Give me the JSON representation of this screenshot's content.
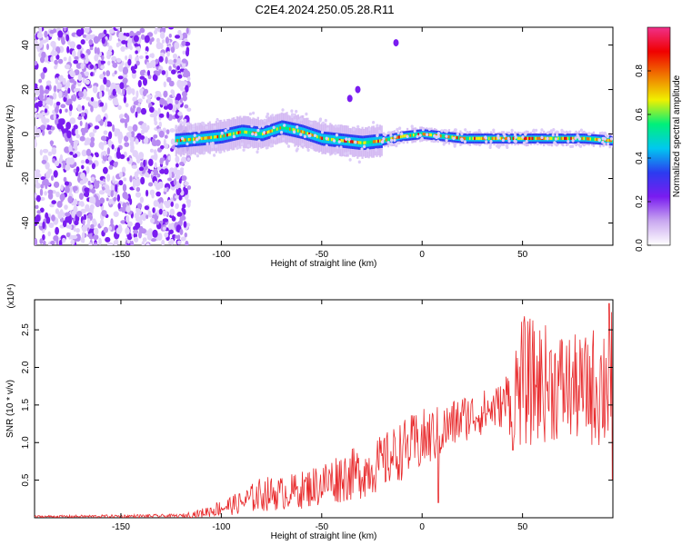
{
  "title": "C2E4.2024.250.05.28.R11",
  "chart_data": [
    {
      "type": "heatmap",
      "xlabel": "Height of straight line (km)",
      "ylabel": "Frequency (Hz)",
      "xlim": [
        -193,
        95
      ],
      "ylim": [
        -50,
        48
      ],
      "xticks": [
        -150,
        -100,
        -50,
        0,
        50
      ],
      "yticks": [
        -40,
        -20,
        0,
        20,
        40
      ],
      "xtick_labels": [
        "-150",
        "-100",
        "-50",
        "0",
        "50"
      ],
      "ytick_labels": [
        "-40",
        "-20",
        "0",
        "20",
        "40"
      ],
      "noise_region_x": [
        -193,
        -116
      ],
      "signal_start_x": -123,
      "outlier_points": [
        {
          "x": -36,
          "y": 16
        },
        {
          "x": -32,
          "y": 20
        },
        {
          "x": -13,
          "y": 41
        }
      ],
      "band_center": [
        {
          "x": -123,
          "y": -3
        },
        {
          "x": -110,
          "y": -2
        },
        {
          "x": -100,
          "y": -1
        },
        {
          "x": -90,
          "y": 1
        },
        {
          "x": -80,
          "y": 0
        },
        {
          "x": -70,
          "y": 3
        },
        {
          "x": -60,
          "y": 1
        },
        {
          "x": -50,
          "y": -2
        },
        {
          "x": -40,
          "y": -3
        },
        {
          "x": -30,
          "y": -4
        },
        {
          "x": -20,
          "y": -3
        },
        {
          "x": -10,
          "y": -1
        },
        {
          "x": 0,
          "y": 0
        },
        {
          "x": 10,
          "y": -1
        },
        {
          "x": 20,
          "y": -2
        },
        {
          "x": 30,
          "y": -2
        },
        {
          "x": 40,
          "y": -2
        },
        {
          "x": 50,
          "y": -2
        },
        {
          "x": 60,
          "y": -2
        },
        {
          "x": 70,
          "y": -2
        },
        {
          "x": 80,
          "y": -2
        },
        {
          "x": 95,
          "y": -3
        }
      ]
    },
    {
      "type": "line",
      "xlabel": "Height of straight line (km)",
      "ylabel": "SNR (10 * v/v)",
      "y_multiplier": "(x10⁴)",
      "xlim": [
        -193,
        95
      ],
      "ylim": [
        0,
        2.9
      ],
      "xticks": [
        -150,
        -100,
        -50,
        0,
        50
      ],
      "yticks": [
        0.5,
        1.0,
        1.5,
        2.0,
        2.5
      ],
      "xtick_labels": [
        "-150",
        "-100",
        "-50",
        "0",
        "50"
      ],
      "ytick_labels": [
        "0.5",
        "1.0",
        "1.5",
        "2.0",
        "2.5"
      ],
      "line_color": "#e8292b",
      "envelope": [
        {
          "x": -193,
          "low": 0.0,
          "high": 0.03
        },
        {
          "x": -120,
          "low": 0.0,
          "high": 0.05
        },
        {
          "x": -110,
          "low": 0.0,
          "high": 0.12
        },
        {
          "x": -100,
          "low": 0.02,
          "high": 0.25
        },
        {
          "x": -90,
          "low": 0.05,
          "high": 0.35
        },
        {
          "x": -80,
          "low": 0.08,
          "high": 0.55
        },
        {
          "x": -70,
          "low": 0.1,
          "high": 0.55
        },
        {
          "x": -60,
          "low": 0.12,
          "high": 0.62
        },
        {
          "x": -50,
          "low": 0.15,
          "high": 0.75
        },
        {
          "x": -40,
          "low": 0.2,
          "high": 0.9
        },
        {
          "x": -30,
          "low": 0.25,
          "high": 0.95
        },
        {
          "x": -20,
          "low": 0.35,
          "high": 1.1
        },
        {
          "x": -10,
          "low": 0.5,
          "high": 1.3
        },
        {
          "x": 0,
          "low": 0.6,
          "high": 1.45
        },
        {
          "x": 10,
          "low": 0.8,
          "high": 1.5
        },
        {
          "x": 20,
          "low": 1.0,
          "high": 1.65
        },
        {
          "x": 30,
          "low": 1.1,
          "high": 1.7
        },
        {
          "x": 40,
          "low": 1.2,
          "high": 1.8
        },
        {
          "x": 50,
          "low": 0.9,
          "high": 2.7
        },
        {
          "x": 60,
          "low": 1.0,
          "high": 2.6
        },
        {
          "x": 70,
          "low": 1.0,
          "high": 2.5
        },
        {
          "x": 80,
          "low": 1.0,
          "high": 2.4
        },
        {
          "x": 95,
          "low": 0.8,
          "high": 2.85
        }
      ],
      "spikes": [
        {
          "x": 8,
          "y": 0.2
        },
        {
          "x": 45,
          "y": 0.9
        },
        {
          "x": 93,
          "y": 2.85
        },
        {
          "x": 95,
          "y": 0.5
        }
      ]
    }
  ],
  "colorbar": {
    "label": "Normalized spectral amplitude",
    "ticks": [
      0.0,
      0.2,
      0.4,
      0.6,
      0.8
    ],
    "tick_labels": [
      "0.0",
      "0.2",
      "0.4",
      "0.6",
      "0.8"
    ],
    "range": [
      0,
      1
    ],
    "colors": [
      "#ffffff",
      "#c9a8f0",
      "#7a1cf0",
      "#2c3cf0",
      "#00c8f0",
      "#00f07a",
      "#f0f000",
      "#f07800",
      "#f00000",
      "#f0308a"
    ]
  }
}
